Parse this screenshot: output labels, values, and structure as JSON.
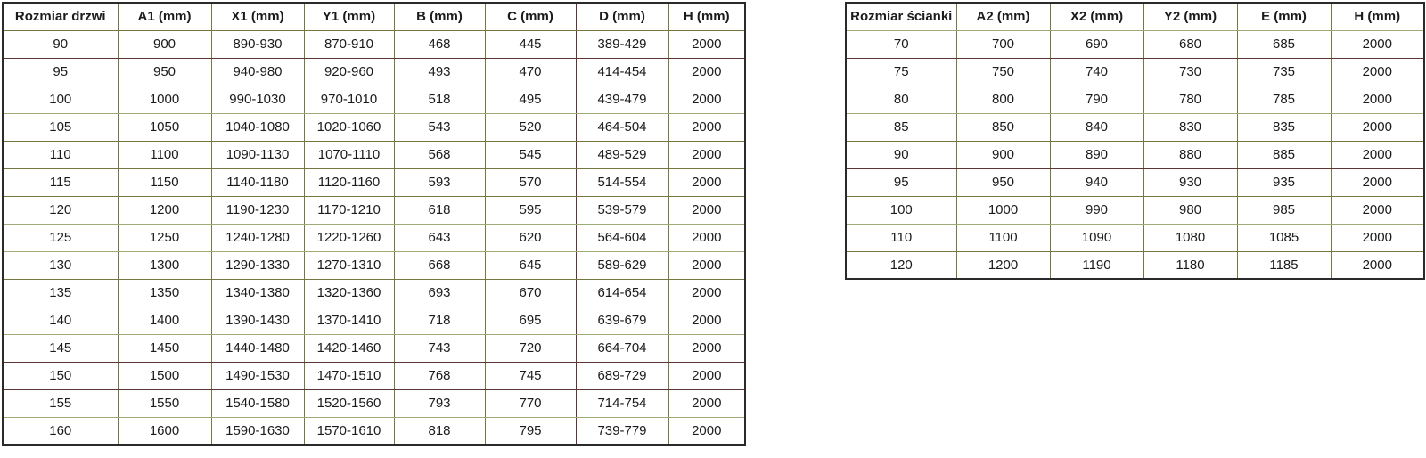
{
  "colors": {
    "outer_border": "#2a2a2a",
    "grid_olive": "#75753f",
    "grid_light_green": "#9cab78",
    "grid_maroon": "#5f3434",
    "text": "#1b1b1b",
    "background": "#ffffff"
  },
  "chart_data": [
    {
      "type": "table",
      "name": "door-size-table",
      "title": "Rozmiar drzwi",
      "columns": [
        "Rozmiar drzwi",
        "A1 (mm)",
        "X1 (mm)",
        "Y1 (mm)",
        "B (mm)",
        "C (mm)",
        "D (mm)",
        "H (mm)"
      ],
      "rows": [
        [
          "90",
          "900",
          "890-930",
          "870-910",
          "468",
          "445",
          "389-429",
          "2000"
        ],
        [
          "95",
          "950",
          "940-980",
          "920-960",
          "493",
          "470",
          "414-454",
          "2000"
        ],
        [
          "100",
          "1000",
          "990-1030",
          "970-1010",
          "518",
          "495",
          "439-479",
          "2000"
        ],
        [
          "105",
          "1050",
          "1040-1080",
          "1020-1060",
          "543",
          "520",
          "464-504",
          "2000"
        ],
        [
          "110",
          "1100",
          "1090-1130",
          "1070-1110",
          "568",
          "545",
          "489-529",
          "2000"
        ],
        [
          "115",
          "1150",
          "1140-1180",
          "1120-1160",
          "593",
          "570",
          "514-554",
          "2000"
        ],
        [
          "120",
          "1200",
          "1190-1230",
          "1170-1210",
          "618",
          "595",
          "539-579",
          "2000"
        ],
        [
          "125",
          "1250",
          "1240-1280",
          "1220-1260",
          "643",
          "620",
          "564-604",
          "2000"
        ],
        [
          "130",
          "1300",
          "1290-1330",
          "1270-1310",
          "668",
          "645",
          "589-629",
          "2000"
        ],
        [
          "135",
          "1350",
          "1340-1380",
          "1320-1360",
          "693",
          "670",
          "614-654",
          "2000"
        ],
        [
          "140",
          "1400",
          "1390-1430",
          "1370-1410",
          "718",
          "695",
          "639-679",
          "2000"
        ],
        [
          "145",
          "1450",
          "1440-1480",
          "1420-1460",
          "743",
          "720",
          "664-704",
          "2000"
        ],
        [
          "150",
          "1500",
          "1490-1530",
          "1470-1510",
          "768",
          "745",
          "689-729",
          "2000"
        ],
        [
          "155",
          "1550",
          "1540-1580",
          "1520-1560",
          "793",
          "770",
          "714-754",
          "2000"
        ],
        [
          "160",
          "1600",
          "1590-1630",
          "1570-1610",
          "818",
          "795",
          "739-779",
          "2000"
        ]
      ]
    },
    {
      "type": "table",
      "name": "wall-size-table",
      "title": "Rozmiar ścianki",
      "columns": [
        "Rozmiar ścianki",
        "A2 (mm)",
        "X2 (mm)",
        "Y2 (mm)",
        "E (mm)",
        "H (mm)"
      ],
      "rows": [
        [
          "70",
          "700",
          "690",
          "680",
          "685",
          "2000"
        ],
        [
          "75",
          "750",
          "740",
          "730",
          "735",
          "2000"
        ],
        [
          "80",
          "800",
          "790",
          "780",
          "785",
          "2000"
        ],
        [
          "85",
          "850",
          "840",
          "830",
          "835",
          "2000"
        ],
        [
          "90",
          "900",
          "890",
          "880",
          "885",
          "2000"
        ],
        [
          "95",
          "950",
          "940",
          "930",
          "935",
          "2000"
        ],
        [
          "100",
          "1000",
          "990",
          "980",
          "985",
          "2000"
        ],
        [
          "110",
          "1100",
          "1090",
          "1080",
          "1085",
          "2000"
        ],
        [
          "120",
          "1200",
          "1190",
          "1180",
          "1185",
          "2000"
        ]
      ]
    }
  ]
}
